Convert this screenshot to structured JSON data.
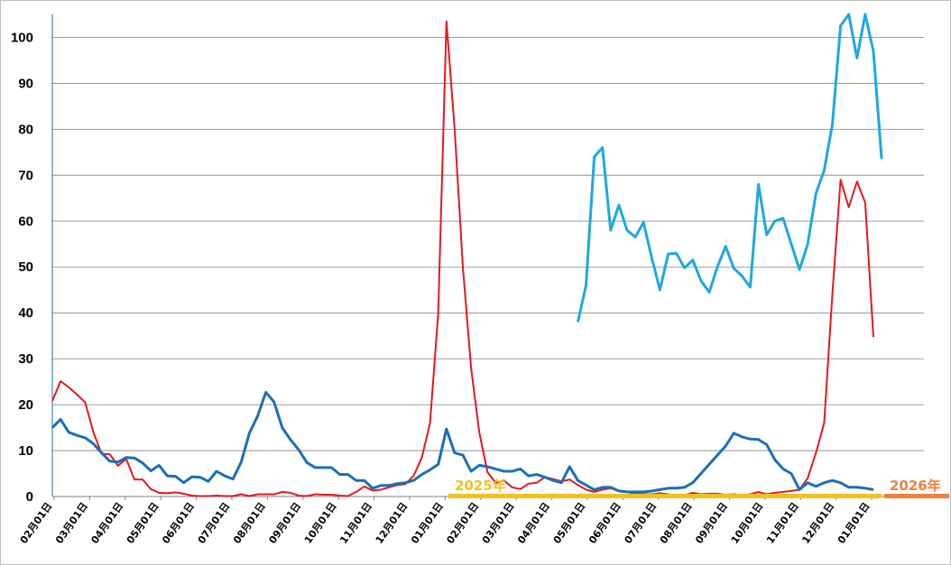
{
  "chart_data": {
    "type": "line",
    "ylim": [
      0,
      105
    ],
    "yticks": [
      "0",
      "10",
      "20",
      "30",
      "40",
      "50",
      "60",
      "70",
      "80",
      "90",
      "100"
    ],
    "grid": true,
    "x_tick_labels": [
      "02月01日",
      "03月01日",
      "04月01日",
      "05月01日",
      "06月01日",
      "07月01日",
      "08月01日",
      "09月01日",
      "10月01日",
      "11月01日",
      "12月01日",
      "01月01日",
      "02月01日",
      "03月01日",
      "04月01日",
      "05月01日",
      "06月01日",
      "07月01日",
      "08月01日",
      "09月01日",
      "10月01日",
      "11月01日",
      "12月01日",
      "01月01日"
    ],
    "year_markers": [
      {
        "label": "2025年",
        "color": "#f4c020"
      },
      {
        "label": "2026年",
        "color": "#f08040"
      }
    ],
    "series": [
      {
        "color": "#e31a1c",
        "values": [
          20.8,
          25.1,
          23.8,
          22.2,
          20.5,
          14.0,
          9.3,
          9.2,
          6.7,
          8.2,
          3.7,
          3.7,
          1.6,
          0.8,
          0.7,
          0.9,
          0.6,
          0.2,
          0.1,
          0.1,
          0.2,
          0.1,
          0.1,
          0.5,
          0.1,
          0.5,
          0.5,
          0.5,
          1.0,
          0.8,
          0.2,
          0.1,
          0.5,
          0.4,
          0.4,
          0.2,
          0.1,
          1.0,
          2.2,
          1.3,
          1.5,
          2.0,
          2.5,
          2.7,
          4.5,
          8.5,
          16.0,
          40.0,
          103.5,
          80.0,
          50.0,
          28.0,
          14.0,
          5.3,
          3.0,
          3.5,
          2.0,
          1.6,
          2.8,
          3.0,
          4.2,
          3.8,
          3.3,
          3.7,
          2.5,
          1.5,
          1.0,
          1.5,
          1.8,
          1.2,
          1.0,
          0.6,
          0.5,
          0.5,
          0.7,
          0.5,
          0.2,
          0.3,
          0.8,
          0.5,
          0.6,
          0.6,
          0.4,
          0.5,
          0.3,
          0.5,
          1.0,
          0.5,
          0.8,
          1.0,
          1.2,
          1.5,
          4.0,
          9.5,
          16.0,
          44.0,
          69.0,
          63.0,
          68.6,
          64.0,
          34.7
        ]
      },
      {
        "color": "#1a6fb8",
        "values": [
          15.0,
          16.8,
          14.0,
          13.3,
          12.8,
          11.5,
          9.5,
          7.7,
          7.5,
          8.5,
          8.4,
          7.3,
          5.6,
          6.8,
          4.5,
          4.4,
          3.0,
          4.3,
          4.2,
          3.3,
          5.5,
          4.5,
          3.8,
          7.5,
          13.8,
          17.5,
          22.7,
          20.6,
          15.0,
          12.4,
          10.2,
          7.4,
          6.3,
          6.3,
          6.3,
          4.8,
          4.8,
          3.5,
          3.5,
          1.8,
          2.4,
          2.4,
          2.8,
          3.0,
          3.5,
          4.8,
          5.8,
          7.0,
          14.7,
          9.5,
          9.0,
          5.5,
          6.8,
          6.5,
          6.0,
          5.5,
          5.5,
          6.0,
          4.5,
          4.8,
          4.2,
          3.5,
          3.0,
          6.5,
          3.5,
          2.5,
          1.5,
          2.0,
          2.0,
          1.2,
          1.0,
          1.0,
          1.0,
          1.2,
          1.5,
          1.8,
          1.8,
          2.0,
          3.0,
          5.0,
          7.0,
          9.0,
          11.0,
          13.8,
          13.0,
          12.5,
          12.4,
          11.3,
          8.0,
          6.0,
          5.0,
          1.5,
          3.0,
          2.2,
          3.0,
          3.5,
          3.0,
          2.0,
          2.0,
          1.8,
          1.5
        ]
      },
      {
        "color": "#1fa8e0",
        "values": [
          null,
          null,
          null,
          null,
          null,
          null,
          null,
          null,
          null,
          null,
          null,
          null,
          null,
          null,
          null,
          null,
          null,
          null,
          null,
          null,
          null,
          null,
          null,
          null,
          null,
          null,
          null,
          null,
          null,
          null,
          null,
          null,
          null,
          null,
          null,
          null,
          null,
          null,
          null,
          null,
          null,
          null,
          null,
          null,
          null,
          null,
          null,
          null,
          null,
          null,
          null,
          null,
          null,
          null,
          null,
          null,
          null,
          null,
          null,
          null,
          null,
          null,
          null,
          null,
          38.0,
          46.0,
          74.0,
          76.0,
          58.0,
          63.5,
          58.0,
          56.5,
          59.7,
          52.0,
          45.0,
          52.8,
          53.0,
          49.8,
          51.5,
          47.0,
          44.5,
          50.0,
          54.5,
          49.7,
          48.0,
          45.6,
          68.0,
          57.0,
          60.0,
          60.6,
          55.0,
          49.4,
          55.0,
          66.0,
          71.0,
          81.0,
          102.5,
          105.0,
          95.5,
          105.0,
          97.0,
          73.5
        ]
      }
    ]
  }
}
